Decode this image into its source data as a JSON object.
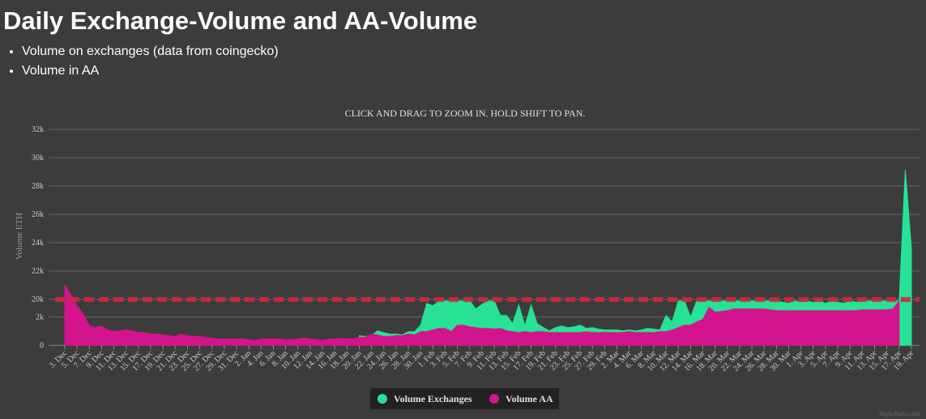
{
  "chart_data": {
    "type": "area",
    "title": "Daily Exchange-Volume and AA-Volume",
    "notes": [
      "Volume on exchanges (data from coingecko)",
      "Volume in AA"
    ],
    "subtitle": "CLICK AND DRAG TO ZOOM IN. HOLD SHIFT TO PAN.",
    "y_label": "Volume ETH",
    "credits": "Highcharts.com",
    "categories": [
      "3. Dec",
      null,
      "5. Dec",
      null,
      "7. Dec",
      null,
      "9. Dec",
      null,
      "11. Dec",
      null,
      "13. Dec",
      null,
      "15. Dec",
      null,
      "17. Dec",
      null,
      "19. Dec",
      null,
      "21. Dec",
      null,
      "23. Dec",
      null,
      "25. Dec",
      null,
      "27. Dec",
      null,
      "29. Dec",
      null,
      "31. Dec",
      null,
      "2. Jan",
      null,
      "4. Jan",
      null,
      "6. Jan",
      null,
      "8. Jan",
      null,
      "10. Jan",
      null,
      "12. Jan",
      null,
      "14. Jan",
      null,
      "16. Jan",
      null,
      "18. Jan",
      null,
      "20. Jan",
      null,
      "22. Jan",
      null,
      "24. Jan",
      null,
      "26. Jan",
      null,
      "28. Jan",
      null,
      "30. Jan",
      null,
      "1. Feb",
      null,
      "3. Feb",
      null,
      "5. Feb",
      null,
      "7. Feb",
      null,
      "9. Feb",
      null,
      "11. Feb",
      null,
      "13. Feb",
      null,
      "15. Feb",
      null,
      "17. Feb",
      null,
      "19. Feb",
      null,
      "21. Feb",
      null,
      "23. Feb",
      null,
      "25. Feb",
      null,
      "27. Feb",
      null,
      "29. Feb",
      null,
      "2. Mar",
      null,
      "4. Mar",
      null,
      "6. Mar",
      null,
      "8. Mar",
      null,
      "10. Mar",
      null,
      "12. Mar",
      null,
      "14. Mar",
      null,
      "16. Mar",
      null,
      "18. Mar",
      null,
      "20. Mar",
      null,
      "22. Mar",
      null,
      "24. Mar",
      null,
      "26. Mar",
      null,
      "28. Mar",
      null,
      "30. Mar",
      null,
      "1. Apr",
      null,
      "3. Apr",
      null,
      "5. Apr",
      null,
      "7. Apr",
      null,
      "9. Apr",
      null,
      "11. Apr",
      null,
      "13. Apr",
      null,
      "15. Apr",
      null,
      "17. Apr",
      null,
      "19. Apr"
    ],
    "series": [
      {
        "name": "Volume Exchanges",
        "color": "#27e296",
        "values": [
          null,
          null,
          null,
          null,
          null,
          null,
          null,
          null,
          null,
          null,
          null,
          null,
          null,
          null,
          null,
          null,
          null,
          null,
          null,
          null,
          null,
          null,
          null,
          null,
          null,
          null,
          null,
          null,
          null,
          null,
          null,
          null,
          null,
          null,
          null,
          null,
          null,
          null,
          null,
          null,
          null,
          null,
          null,
          null,
          null,
          null,
          null,
          null,
          690,
          630,
          690,
          1030,
          900,
          800,
          800,
          740,
          970,
          970,
          1430,
          15900,
          13450,
          18400,
          18400,
          18400,
          18400,
          18400,
          18400,
          10200,
          15000,
          18400,
          18400,
          3600,
          3600,
          1540,
          14300,
          1370,
          14300,
          1540,
          1260,
          1030,
          1260,
          1370,
          1260,
          1310,
          1430,
          1200,
          1260,
          1150,
          1090,
          1090,
          1090,
          1030,
          1090,
          1030,
          1090,
          1200,
          1150,
          1090,
          3600,
          1660,
          18400,
          18400,
          2000,
          18400,
          18400,
          18400,
          18400,
          18400,
          18400,
          18400,
          18400,
          18400,
          18400,
          18400,
          18400,
          18400,
          18400,
          17000,
          15900,
          18400,
          16700,
          18400,
          16700,
          18400,
          15900,
          18400,
          17000,
          15900,
          18400,
          17000,
          18400,
          18400,
          18400,
          18400,
          18400,
          18400,
          18400,
          29140,
          23600
        ]
      },
      {
        "name": "Volume AA",
        "color": "#d3148c",
        "values": [
          21000,
          20300,
          13450,
          5270,
          1370,
          1260,
          1370,
          1090,
          970,
          1030,
          1090,
          1030,
          910,
          910,
          800,
          800,
          740,
          690,
          630,
          800,
          690,
          630,
          630,
          570,
          510,
          460,
          460,
          460,
          460,
          460,
          400,
          340,
          460,
          460,
          460,
          460,
          400,
          400,
          460,
          510,
          460,
          400,
          340,
          460,
          460,
          510,
          460,
          460,
          570,
          570,
          800,
          740,
          630,
          630,
          690,
          690,
          800,
          740,
          970,
          970,
          1090,
          1200,
          1200,
          970,
          1430,
          1430,
          1310,
          1260,
          1200,
          1200,
          1150,
          1200,
          1030,
          970,
          910,
          970,
          910,
          970,
          970,
          910,
          910,
          910,
          910,
          910,
          910,
          970,
          910,
          910,
          910,
          910,
          910,
          910,
          970,
          910,
          910,
          910,
          910,
          970,
          970,
          1090,
          1260,
          1430,
          1430,
          1660,
          1830,
          11800,
          6900,
          7700,
          8500,
          10200,
          10200,
          10200,
          10200,
          10200,
          10200,
          9400,
          8500,
          8500,
          8500,
          8500,
          8500,
          8500,
          8500,
          8500,
          8500,
          8500,
          8500,
          8500,
          8500,
          8500,
          9400,
          9400,
          9400,
          9400,
          9400,
          10200,
          18400,
          null,
          null
        ]
      }
    ],
    "ylim": [
      0,
      32000
    ],
    "y_breaks": [
      {
        "from": 2000,
        "to": 20000
      }
    ],
    "yticks": [
      0,
      {
        "value": 2000,
        "label": "2k"
      },
      {
        "value": 20000,
        "label": "20k"
      },
      {
        "value": 22000,
        "label": "22k"
      },
      {
        "value": 24000,
        "label": "24k"
      },
      {
        "value": 26000,
        "label": "26k"
      },
      {
        "value": 28000,
        "label": "28k"
      },
      {
        "value": 30000,
        "label": "30k"
      },
      {
        "value": 32000,
        "label": "32k"
      }
    ],
    "plot_line": {
      "value": 19800,
      "color": "#d0283a"
    },
    "grid": true,
    "legend": "bottom"
  }
}
